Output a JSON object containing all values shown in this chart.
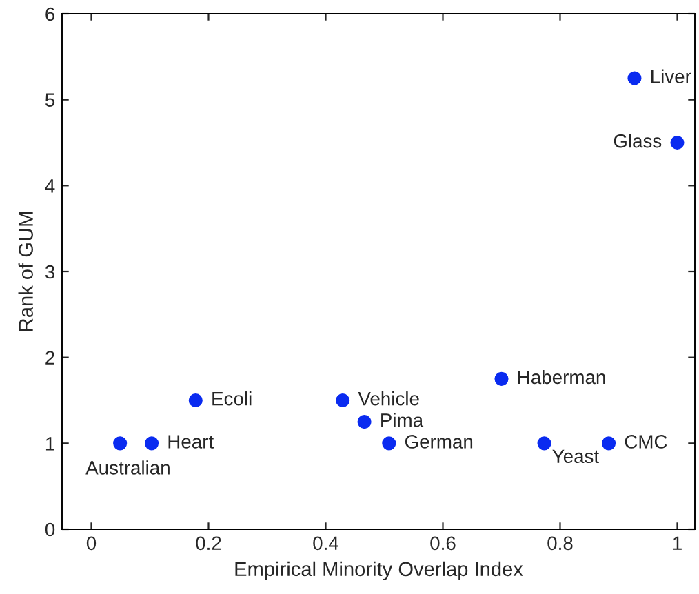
{
  "chart_data": {
    "type": "scatter",
    "xlabel": "Empirical Minority Overlap Index",
    "ylabel": "Rank of GUM",
    "x": [
      0.049,
      0.103,
      0.178,
      0.429,
      0.466,
      0.508,
      0.7,
      0.773,
      0.883,
      0.927,
      1.0
    ],
    "series": [
      {
        "color": "#0a2bf0",
        "values": [
          1,
          1,
          1.5,
          1.5,
          1.25,
          1,
          1.75,
          1,
          1,
          5.25,
          4.5
        ]
      }
    ],
    "annotations": [
      {
        "text": "Australian",
        "x": 0.049,
        "y": 1
      },
      {
        "text": "Heart",
        "x": 0.103,
        "y": 1
      },
      {
        "text": "Ecoli",
        "x": 0.178,
        "y": 1.5
      },
      {
        "text": "Vehicle",
        "x": 0.429,
        "y": 1.5
      },
      {
        "text": "Pima",
        "x": 0.466,
        "y": 1.25
      },
      {
        "text": "German",
        "x": 0.508,
        "y": 1
      },
      {
        "text": "Haberman",
        "x": 0.7,
        "y": 1.75
      },
      {
        "text": "Yeast",
        "x": 0.773,
        "y": 1
      },
      {
        "text": "CMC",
        "x": 0.883,
        "y": 1
      },
      {
        "text": "Liver",
        "x": 0.927,
        "y": 5.25
      },
      {
        "text": "Glass",
        "x": 1.0,
        "y": 4.5
      }
    ],
    "marker": "circle",
    "grid": false,
    "xlim": [
      -0.05,
      1.03
    ],
    "xticks": [
      0,
      0.2,
      0.4,
      0.6,
      0.8,
      1
    ],
    "ylim": [
      0,
      6
    ],
    "yticks": [
      0,
      1,
      2,
      3,
      4,
      5,
      6
    ]
  }
}
